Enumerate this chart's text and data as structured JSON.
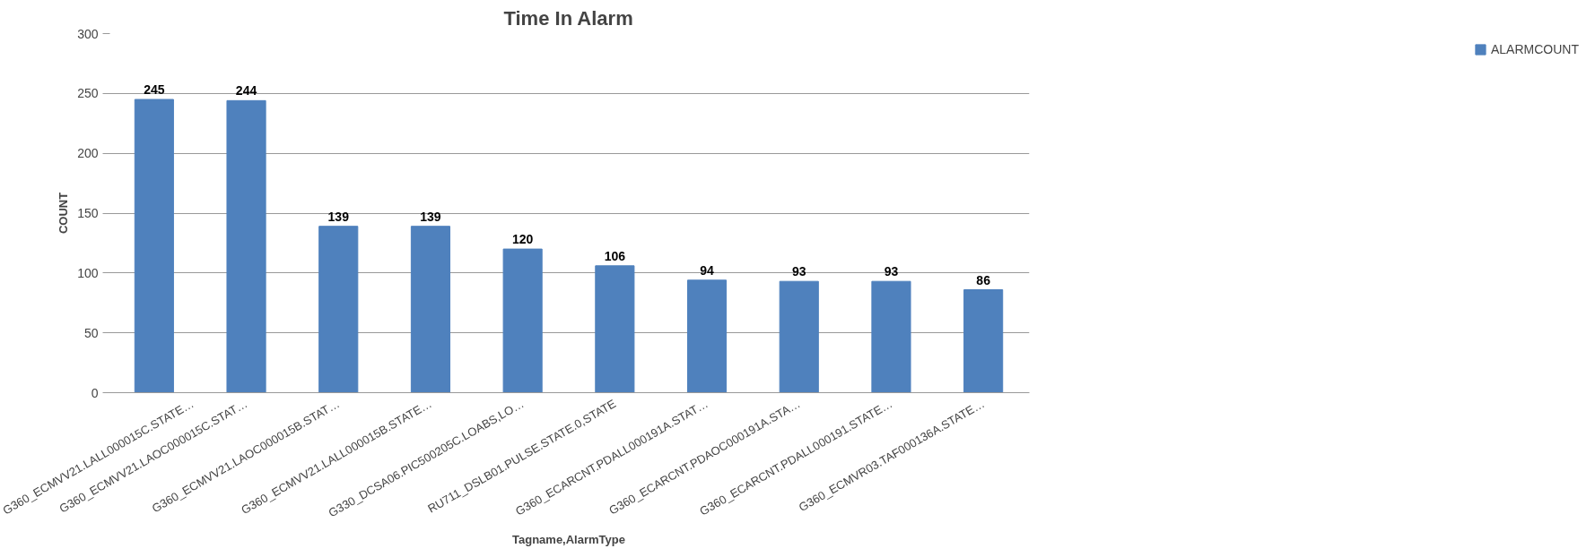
{
  "chart_data": {
    "type": "bar",
    "title": "Time In Alarm",
    "xlabel": "Tagname,AlarmType",
    "ylabel": "COUNT",
    "categories": [
      "G360_ECMVV21.LALL000015C.STATE…",
      "G360_ECMVV21.LAOC000015C.STAT…",
      "G360_ECMVV21.LAOC000015B.STAT…",
      "G360_ECMVV21.LALL000015B.STATE…",
      "G330_DCSA06.PIC500205C.LOABS,LO…",
      "RU711_DSLB01.PULSE.STATE.0,STATE",
      "G360_ECARCNT.PDALL000191A.STAT…",
      "G360_ECARCNT.PDAOC000191A.STA…",
      "G360_ECARCNT.PDALL000191.STATE…",
      "G360_ECMVR03.TAF000136A.STATE…"
    ],
    "series": [
      {
        "name": "ALARMCOUNT",
        "color": "#4f81bd",
        "values": [
          245,
          244,
          139,
          139,
          120,
          106,
          94,
          93,
          93,
          86
        ]
      }
    ],
    "ylim": [
      0,
      300
    ],
    "yticks": [
      0,
      50,
      100,
      150,
      200,
      250,
      300
    ],
    "grid": "y",
    "legend": "right",
    "data_labels": true
  }
}
